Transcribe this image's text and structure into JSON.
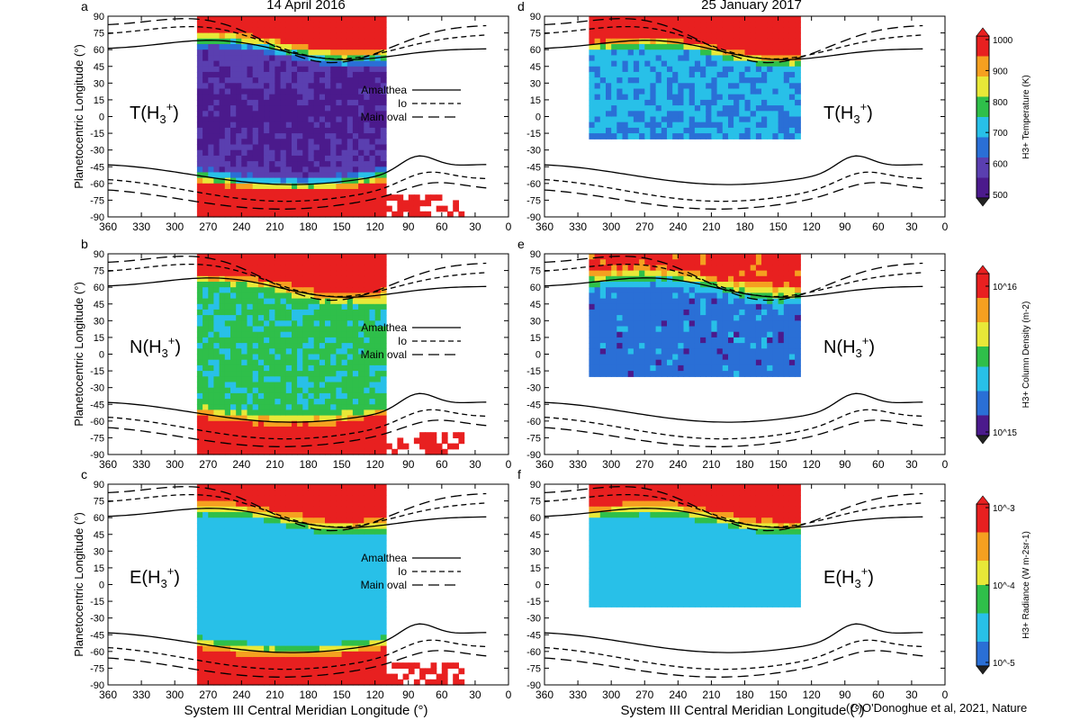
{
  "figure": {
    "column_titles": [
      "14 April 2016",
      "25 January 2017"
    ],
    "xlabel": "System III Central Meridian Longitude (°)",
    "ylabel": "Planetocentric Longitude (°)",
    "credit": "(C)O'Donoghue et al, 2021, Nature",
    "legend": [
      {
        "label": "Amalthea",
        "style": "solid"
      },
      {
        "label": "Io",
        "style": "short-dash"
      },
      {
        "label": "Main oval",
        "style": "long-dash"
      }
    ],
    "colorbars": [
      {
        "label": "H3+ Temperature (K)",
        "ticks": [
          "1000",
          "900",
          "800",
          "700",
          "600",
          "500"
        ]
      },
      {
        "label": "H3+ Column Density (m-2)",
        "ticks": [
          "10^16",
          "10^15"
        ]
      },
      {
        "label": "H3+ Radiance (W m-2sr-1)",
        "ticks": [
          "10^-3",
          "10^-4",
          "10^-5"
        ]
      }
    ]
  },
  "chart_data": [
    {
      "panel": "a",
      "type": "heatmap",
      "quantity": "T(H3+)",
      "date": "14 April 2016",
      "x_range": [
        360,
        0
      ],
      "y_range": [
        -90,
        90
      ],
      "x_ticks": [
        360,
        330,
        300,
        270,
        240,
        210,
        180,
        150,
        120,
        90,
        60,
        30,
        0
      ],
      "y_ticks": [
        90,
        75,
        60,
        45,
        30,
        15,
        0,
        -15,
        -30,
        -45,
        -60,
        -75,
        -90
      ],
      "coverage_lon": [
        280,
        110
      ],
      "color_scale": "temperature",
      "show_legend": true
    },
    {
      "panel": "b",
      "type": "heatmap",
      "quantity": "N(H3+)",
      "date": "14 April 2016",
      "x_range": [
        360,
        0
      ],
      "y_range": [
        -90,
        90
      ],
      "x_ticks": [
        360,
        330,
        300,
        270,
        240,
        210,
        180,
        150,
        120,
        90,
        60,
        30,
        0
      ],
      "y_ticks": [
        90,
        75,
        60,
        45,
        30,
        15,
        0,
        -15,
        -30,
        -45,
        -60,
        -75,
        -90
      ],
      "coverage_lon": [
        280,
        110
      ],
      "color_scale": "density",
      "show_legend": true
    },
    {
      "panel": "c",
      "type": "heatmap",
      "quantity": "E(H3+)",
      "date": "14 April 2016",
      "x_range": [
        360,
        0
      ],
      "y_range": [
        -90,
        90
      ],
      "x_ticks": [
        360,
        330,
        300,
        270,
        240,
        210,
        180,
        150,
        120,
        90,
        60,
        30,
        0
      ],
      "y_ticks": [
        90,
        75,
        60,
        45,
        30,
        15,
        0,
        -15,
        -30,
        -45,
        -60,
        -75,
        -90
      ],
      "coverage_lon": [
        280,
        110
      ],
      "color_scale": "radiance",
      "show_legend": true
    },
    {
      "panel": "d",
      "type": "heatmap",
      "quantity": "T(H3+)",
      "date": "25 January 2017",
      "x_range": [
        360,
        0
      ],
      "y_range": [
        -90,
        90
      ],
      "x_ticks": [
        360,
        330,
        300,
        270,
        240,
        210,
        180,
        150,
        120,
        90,
        60,
        30,
        0
      ],
      "y_ticks": [
        90,
        75,
        60,
        45,
        30,
        15,
        0,
        -15,
        -30,
        -45,
        -60,
        -75,
        -90
      ],
      "coverage_lon": [
        320,
        130
      ],
      "coverage_lat_min": -20,
      "color_scale": "temperature",
      "show_legend": false
    },
    {
      "panel": "e",
      "type": "heatmap",
      "quantity": "N(H3+)",
      "date": "25 January 2017",
      "x_range": [
        360,
        0
      ],
      "y_range": [
        -90,
        90
      ],
      "x_ticks": [
        360,
        330,
        300,
        270,
        240,
        210,
        180,
        150,
        120,
        90,
        60,
        30,
        0
      ],
      "y_ticks": [
        90,
        75,
        60,
        45,
        30,
        15,
        0,
        -15,
        -30,
        -45,
        -60,
        -75,
        -90
      ],
      "coverage_lon": [
        320,
        130
      ],
      "coverage_lat_min": -20,
      "color_scale": "density",
      "show_legend": false
    },
    {
      "panel": "f",
      "type": "heatmap",
      "quantity": "E(H3+)",
      "date": "25 January 2017",
      "x_range": [
        360,
        0
      ],
      "y_range": [
        -90,
        90
      ],
      "x_ticks": [
        360,
        330,
        300,
        270,
        240,
        210,
        180,
        150,
        120,
        90,
        60,
        30,
        0
      ],
      "y_ticks": [
        90,
        75,
        60,
        45,
        30,
        15,
        0,
        -15,
        -30,
        -45,
        -60,
        -75,
        -90
      ],
      "coverage_lon": [
        320,
        130
      ],
      "coverage_lat_min": -20,
      "color_scale": "radiance",
      "show_legend": false
    }
  ],
  "colors": {
    "temperature": [
      "#4b1a8c",
      "#5a3fb0",
      "#2a6fd6",
      "#28c0e8",
      "#2fbf4a",
      "#e8e838",
      "#f5a020",
      "#e82020"
    ],
    "density": [
      "#4b1a8c",
      "#2a6fd6",
      "#28c0e8",
      "#2fbf4a",
      "#e8e838",
      "#f5a020",
      "#e82020"
    ],
    "radiance": [
      "#2a6fd6",
      "#28c0e8",
      "#2fbf4a",
      "#e8e838",
      "#f5a020",
      "#e82020"
    ]
  }
}
